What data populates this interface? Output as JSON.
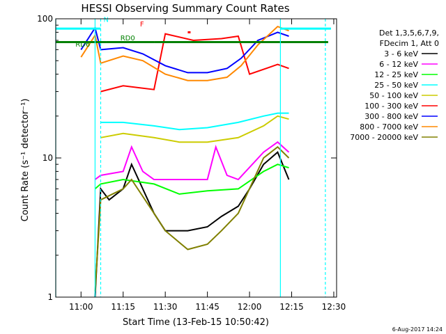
{
  "chart_data": {
    "type": "line",
    "title": "HESSI Observing Summary Count Rates",
    "xlabel": "Start Time (13-Feb-15 10:50:42)",
    "ylabel": "Count Rate (s⁻¹ detector⁻¹)",
    "y_scale": "log",
    "ylim": [
      1,
      100
    ],
    "xlim": [
      "10:51",
      "12:31"
    ],
    "x_ticks": [
      "11:00",
      "11:15",
      "11:30",
      "11:45",
      "12:00",
      "12:15",
      "12:30"
    ],
    "y_ticks": [
      "1",
      "10",
      "100"
    ],
    "grid": false,
    "legend": {
      "placement": "right",
      "header": [
        "Det 1,3,5,6,7,9,",
        "FDecim 1, Att 0"
      ]
    },
    "annotations": [
      "N",
      "F",
      "RD0",
      "RD6"
    ],
    "footer_date": "6-Aug-2017 14:24",
    "vertical_markers": [
      {
        "time": "10:51",
        "color": "#00ffff",
        "style": "solid"
      },
      {
        "time": "11:05",
        "color": "#00ffff",
        "style": "solid"
      },
      {
        "time": "11:07",
        "color": "#00ffff",
        "style": "dashed"
      },
      {
        "time": "12:11",
        "color": "#00ffff",
        "style": "solid"
      },
      {
        "time": "12:27",
        "color": "#00ffff",
        "style": "dashed"
      }
    ],
    "flags": [
      {
        "name": "N",
        "color": "#00ffff",
        "value": 85,
        "ranges": [
          [
            "10:51",
            "11:07"
          ],
          [
            "12:11",
            "12:29"
          ]
        ]
      },
      {
        "name": "F",
        "color": "#ff0000",
        "value": 80,
        "ranges": [
          [
            "11:38",
            "11:39"
          ]
        ]
      },
      {
        "name": "RD0",
        "color": "#008000",
        "value": 68,
        "ranges": [
          [
            "10:51",
            "11:09"
          ],
          [
            "11:09",
            "11:26"
          ],
          [
            "11:26",
            "11:56"
          ],
          [
            "11:56",
            "12:28"
          ]
        ]
      }
    ],
    "series": [
      {
        "name": "3 - 6 keV",
        "color": "#000000",
        "points": [
          [
            "11:05",
            1.0
          ],
          [
            "11:07",
            6
          ],
          [
            "11:10",
            5
          ],
          [
            "11:15",
            6
          ],
          [
            "11:18",
            9
          ],
          [
            "11:22",
            6
          ],
          [
            "11:26",
            4
          ],
          [
            "11:30",
            3
          ],
          [
            "11:38",
            3
          ],
          [
            "11:45",
            3.2
          ],
          [
            "11:50",
            3.8
          ],
          [
            "11:56",
            4.5
          ],
          [
            "12:00",
            6
          ],
          [
            "12:05",
            9
          ],
          [
            "12:10",
            11
          ],
          [
            "12:14",
            7
          ]
        ]
      },
      {
        "name": "6 - 12 keV",
        "color": "#ff00ff",
        "points": [
          [
            "11:05",
            7
          ],
          [
            "11:07",
            7.5
          ],
          [
            "11:15",
            8
          ],
          [
            "11:18",
            12
          ],
          [
            "11:22",
            8
          ],
          [
            "11:26",
            7
          ],
          [
            "11:35",
            7
          ],
          [
            "11:45",
            7
          ],
          [
            "11:48",
            12
          ],
          [
            "11:52",
            7.5
          ],
          [
            "11:56",
            7
          ],
          [
            "12:05",
            11
          ],
          [
            "12:10",
            13
          ],
          [
            "12:14",
            11
          ]
        ]
      },
      {
        "name": "12 - 25 keV",
        "color": "#00ff00",
        "points": [
          [
            "11:05",
            6
          ],
          [
            "11:07",
            6.5
          ],
          [
            "11:15",
            7
          ],
          [
            "11:26",
            6.5
          ],
          [
            "11:35",
            5.5
          ],
          [
            "11:45",
            5.8
          ],
          [
            "11:56",
            6
          ],
          [
            "12:05",
            8
          ],
          [
            "12:10",
            9
          ],
          [
            "12:14",
            8.5
          ]
        ]
      },
      {
        "name": "25 - 50 keV",
        "color": "#00ffff",
        "points": [
          [
            "11:07",
            18
          ],
          [
            "11:15",
            18
          ],
          [
            "11:26",
            17
          ],
          [
            "11:35",
            16
          ],
          [
            "11:45",
            16.5
          ],
          [
            "11:56",
            18
          ],
          [
            "12:05",
            20
          ],
          [
            "12:10",
            21
          ],
          [
            "12:14",
            21
          ]
        ]
      },
      {
        "name": "50 - 100 keV",
        "color": "#cccc00",
        "points": [
          [
            "11:07",
            14
          ],
          [
            "11:15",
            15
          ],
          [
            "11:26",
            14
          ],
          [
            "11:35",
            13
          ],
          [
            "11:45",
            13
          ],
          [
            "11:56",
            14
          ],
          [
            "12:05",
            17
          ],
          [
            "12:10",
            20
          ],
          [
            "12:14",
            19
          ]
        ]
      },
      {
        "name": "100 - 300 keV",
        "color": "#ff0000",
        "points": [
          [
            "11:07",
            30
          ],
          [
            "11:15",
            33
          ],
          [
            "11:26",
            31
          ],
          [
            "11:30",
            78
          ],
          [
            "11:40",
            70
          ],
          [
            "11:50",
            72
          ],
          [
            "11:56",
            75
          ],
          [
            "12:00",
            40
          ],
          [
            "12:10",
            47
          ],
          [
            "12:14",
            44
          ]
        ]
      },
      {
        "name": "300 - 800 keV",
        "color": "#0000ff",
        "points": [
          [
            "11:00",
            60
          ],
          [
            "11:05",
            86
          ],
          [
            "11:07",
            60
          ],
          [
            "11:15",
            62
          ],
          [
            "11:22",
            56
          ],
          [
            "11:30",
            46
          ],
          [
            "11:38",
            41
          ],
          [
            "11:45",
            41
          ],
          [
            "11:52",
            44
          ],
          [
            "11:57",
            52
          ],
          [
            "12:03",
            70
          ],
          [
            "12:10",
            80
          ],
          [
            "12:14",
            75
          ]
        ]
      },
      {
        "name": "800 - 7000 keV",
        "color": "#ff8800",
        "points": [
          [
            "11:00",
            53
          ],
          [
            "11:05",
            76
          ],
          [
            "11:07",
            48
          ],
          [
            "11:15",
            54
          ],
          [
            "11:22",
            50
          ],
          [
            "11:30",
            40
          ],
          [
            "11:38",
            36
          ],
          [
            "11:45",
            36
          ],
          [
            "11:52",
            38
          ],
          [
            "11:57",
            46
          ],
          [
            "12:03",
            65
          ],
          [
            "12:10",
            88
          ],
          [
            "12:14",
            82
          ]
        ]
      },
      {
        "name": "7000 - 20000 keV",
        "color": "#808000",
        "points": [
          [
            "11:05",
            1.1
          ],
          [
            "11:07",
            5
          ],
          [
            "11:15",
            6
          ],
          [
            "11:18",
            7
          ],
          [
            "11:26",
            4
          ],
          [
            "11:30",
            3
          ],
          [
            "11:38",
            2.2
          ],
          [
            "11:45",
            2.4
          ],
          [
            "11:50",
            3
          ],
          [
            "11:56",
            4
          ],
          [
            "12:05",
            10
          ],
          [
            "12:10",
            12
          ],
          [
            "12:14",
            10
          ]
        ]
      }
    ]
  }
}
